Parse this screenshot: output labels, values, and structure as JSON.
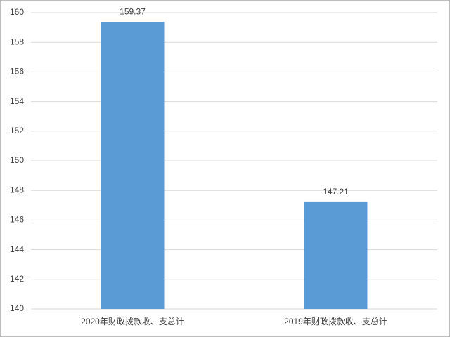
{
  "chart_data": {
    "type": "bar",
    "categories": [
      "2020年财政拨款收、支总计",
      "2019年财政拨款收、支总计"
    ],
    "values": [
      159.37,
      147.21
    ],
    "color": "#5b9bd5",
    "ylim": [
      140,
      160
    ],
    "yticks": [
      140,
      142,
      144,
      146,
      148,
      150,
      152,
      154,
      156,
      158,
      160
    ],
    "grid": true,
    "data_labels": true
  }
}
